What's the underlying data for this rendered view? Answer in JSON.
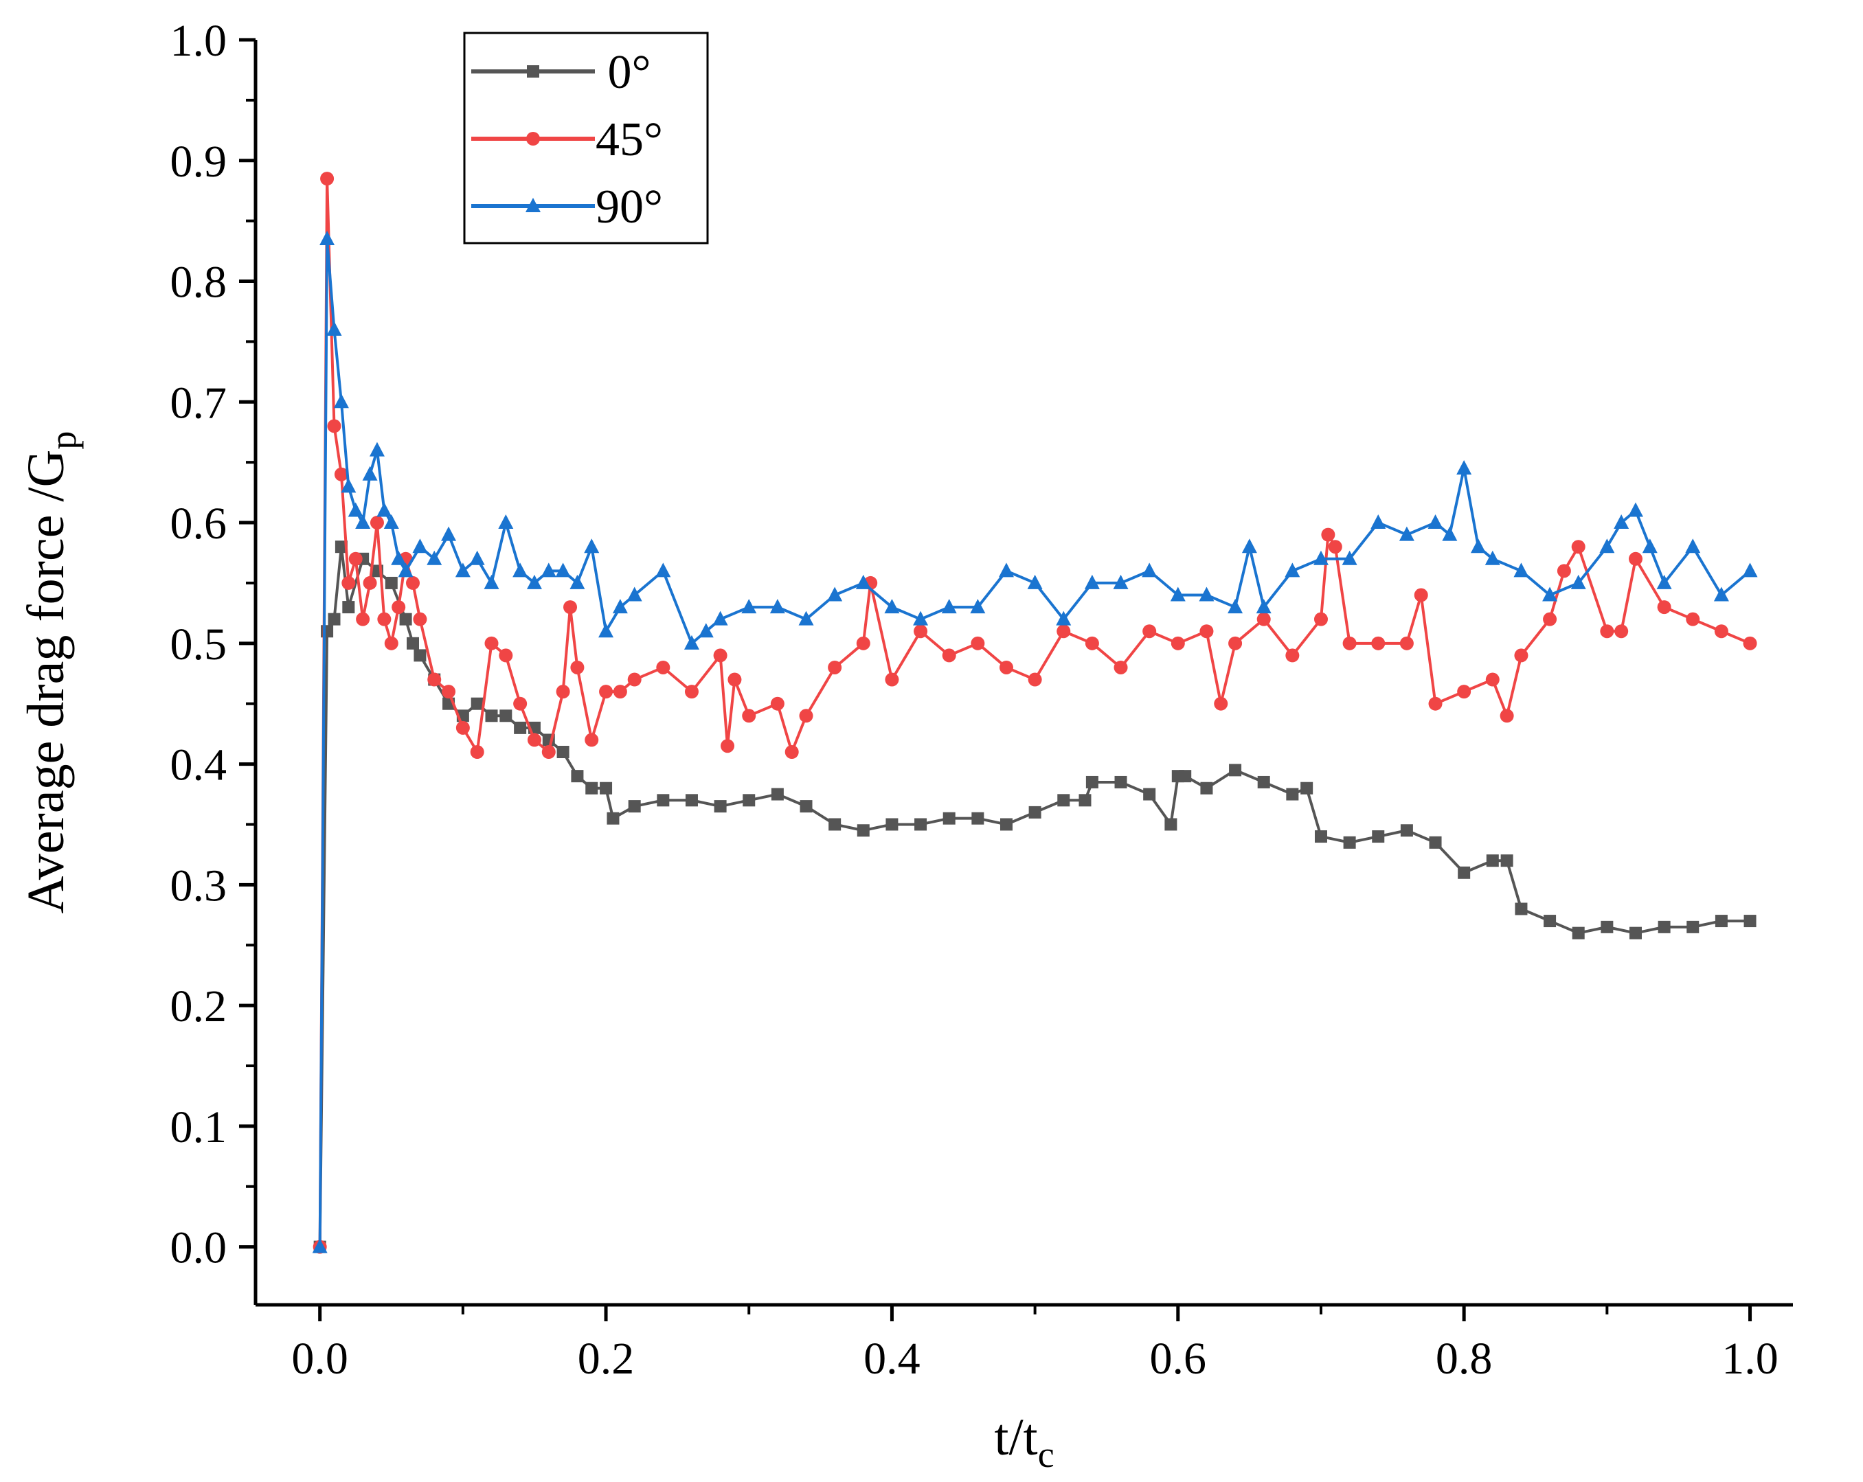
{
  "chart_data": {
    "type": "line",
    "title": "",
    "xlabel": "t/t",
    "xlabel_sub": "c",
    "ylabel": "Average drag force /G",
    "ylabel_sub": "p",
    "xlim": [
      -0.045,
      1.03
    ],
    "ylim": [
      -0.048,
      1.0
    ],
    "x_ticks": [
      0.0,
      0.2,
      0.4,
      0.6,
      0.8,
      1.0
    ],
    "x_tick_labels": [
      "0.0",
      "0.2",
      "0.4",
      "0.6",
      "0.8",
      "1.0"
    ],
    "y_ticks": [
      0.0,
      0.1,
      0.2,
      0.3,
      0.4,
      0.5,
      0.6,
      0.7,
      0.8,
      0.9,
      1.0
    ],
    "y_tick_labels": [
      "0.0",
      "0.1",
      "0.2",
      "0.3",
      "0.4",
      "0.5",
      "0.6",
      "0.7",
      "0.8",
      "0.9",
      "1.0"
    ],
    "grid": false,
    "legend_position": "top-left",
    "series": [
      {
        "name": "0°",
        "color": "#555555",
        "marker": "square",
        "x": [
          0.0,
          0.005,
          0.01,
          0.015,
          0.02,
          0.03,
          0.04,
          0.05,
          0.06,
          0.065,
          0.07,
          0.08,
          0.09,
          0.1,
          0.11,
          0.12,
          0.13,
          0.14,
          0.15,
          0.16,
          0.17,
          0.18,
          0.19,
          0.2,
          0.205,
          0.22,
          0.24,
          0.26,
          0.28,
          0.3,
          0.32,
          0.34,
          0.36,
          0.38,
          0.4,
          0.42,
          0.44,
          0.46,
          0.48,
          0.5,
          0.52,
          0.535,
          0.54,
          0.56,
          0.58,
          0.595,
          0.6,
          0.605,
          0.62,
          0.64,
          0.66,
          0.68,
          0.69,
          0.7,
          0.72,
          0.74,
          0.76,
          0.78,
          0.8,
          0.82,
          0.83,
          0.84,
          0.86,
          0.88,
          0.9,
          0.92,
          0.94,
          0.96,
          0.98,
          1.0
        ],
        "y": [
          0.0,
          0.51,
          0.52,
          0.58,
          0.53,
          0.57,
          0.56,
          0.55,
          0.52,
          0.5,
          0.49,
          0.47,
          0.45,
          0.44,
          0.45,
          0.44,
          0.44,
          0.43,
          0.43,
          0.42,
          0.41,
          0.39,
          0.38,
          0.38,
          0.355,
          0.365,
          0.37,
          0.37,
          0.365,
          0.37,
          0.375,
          0.365,
          0.35,
          0.345,
          0.35,
          0.35,
          0.355,
          0.355,
          0.35,
          0.36,
          0.37,
          0.37,
          0.385,
          0.385,
          0.375,
          0.35,
          0.39,
          0.39,
          0.38,
          0.395,
          0.385,
          0.375,
          0.38,
          0.34,
          0.335,
          0.34,
          0.345,
          0.335,
          0.31,
          0.32,
          0.32,
          0.28,
          0.27,
          0.26,
          0.265,
          0.26,
          0.265,
          0.265,
          0.27,
          0.27
        ]
      },
      {
        "name": "45°",
        "color": "#f04545",
        "marker": "circle",
        "x": [
          0.0,
          0.005,
          0.01,
          0.015,
          0.02,
          0.025,
          0.03,
          0.035,
          0.04,
          0.045,
          0.05,
          0.055,
          0.06,
          0.065,
          0.07,
          0.08,
          0.09,
          0.1,
          0.11,
          0.12,
          0.13,
          0.14,
          0.15,
          0.16,
          0.17,
          0.175,
          0.18,
          0.19,
          0.2,
          0.21,
          0.22,
          0.24,
          0.26,
          0.28,
          0.285,
          0.29,
          0.3,
          0.32,
          0.33,
          0.34,
          0.36,
          0.38,
          0.385,
          0.4,
          0.42,
          0.44,
          0.46,
          0.48,
          0.5,
          0.52,
          0.54,
          0.56,
          0.58,
          0.6,
          0.62,
          0.63,
          0.64,
          0.66,
          0.68,
          0.7,
          0.705,
          0.71,
          0.72,
          0.74,
          0.76,
          0.77,
          0.78,
          0.8,
          0.82,
          0.83,
          0.84,
          0.86,
          0.87,
          0.88,
          0.9,
          0.91,
          0.92,
          0.94,
          0.96,
          0.98,
          1.0
        ],
        "y": [
          0.0,
          0.885,
          0.68,
          0.64,
          0.55,
          0.57,
          0.52,
          0.55,
          0.6,
          0.52,
          0.5,
          0.53,
          0.57,
          0.55,
          0.52,
          0.47,
          0.46,
          0.43,
          0.41,
          0.5,
          0.49,
          0.45,
          0.42,
          0.41,
          0.46,
          0.53,
          0.48,
          0.42,
          0.46,
          0.46,
          0.47,
          0.48,
          0.46,
          0.49,
          0.415,
          0.47,
          0.44,
          0.45,
          0.41,
          0.44,
          0.48,
          0.5,
          0.55,
          0.47,
          0.51,
          0.49,
          0.5,
          0.48,
          0.47,
          0.51,
          0.5,
          0.48,
          0.51,
          0.5,
          0.51,
          0.45,
          0.5,
          0.52,
          0.49,
          0.52,
          0.59,
          0.58,
          0.5,
          0.5,
          0.5,
          0.54,
          0.45,
          0.46,
          0.47,
          0.44,
          0.49,
          0.52,
          0.56,
          0.58,
          0.51,
          0.51,
          0.57,
          0.53,
          0.52,
          0.51,
          0.5
        ]
      },
      {
        "name": "90°",
        "color": "#1a74d0",
        "marker": "triangle",
        "x": [
          0.0,
          0.005,
          0.01,
          0.015,
          0.02,
          0.025,
          0.03,
          0.035,
          0.04,
          0.045,
          0.05,
          0.055,
          0.06,
          0.07,
          0.08,
          0.09,
          0.1,
          0.11,
          0.12,
          0.13,
          0.14,
          0.15,
          0.16,
          0.17,
          0.18,
          0.19,
          0.2,
          0.21,
          0.22,
          0.24,
          0.26,
          0.27,
          0.28,
          0.3,
          0.32,
          0.34,
          0.36,
          0.38,
          0.4,
          0.42,
          0.44,
          0.46,
          0.48,
          0.5,
          0.52,
          0.54,
          0.56,
          0.58,
          0.6,
          0.62,
          0.64,
          0.65,
          0.66,
          0.68,
          0.7,
          0.72,
          0.74,
          0.76,
          0.78,
          0.79,
          0.8,
          0.81,
          0.82,
          0.84,
          0.86,
          0.88,
          0.9,
          0.91,
          0.92,
          0.93,
          0.94,
          0.96,
          0.98,
          1.0
        ],
        "y": [
          0.0,
          0.835,
          0.76,
          0.7,
          0.63,
          0.61,
          0.6,
          0.64,
          0.66,
          0.61,
          0.6,
          0.57,
          0.56,
          0.58,
          0.57,
          0.59,
          0.56,
          0.57,
          0.55,
          0.6,
          0.56,
          0.55,
          0.56,
          0.56,
          0.55,
          0.58,
          0.51,
          0.53,
          0.54,
          0.56,
          0.5,
          0.51,
          0.52,
          0.53,
          0.53,
          0.52,
          0.54,
          0.55,
          0.53,
          0.52,
          0.53,
          0.53,
          0.56,
          0.55,
          0.52,
          0.55,
          0.55,
          0.56,
          0.54,
          0.54,
          0.53,
          0.58,
          0.53,
          0.56,
          0.57,
          0.57,
          0.6,
          0.59,
          0.6,
          0.59,
          0.645,
          0.58,
          0.57,
          0.56,
          0.54,
          0.55,
          0.58,
          0.6,
          0.61,
          0.58,
          0.55,
          0.58,
          0.54,
          0.56
        ]
      }
    ]
  }
}
